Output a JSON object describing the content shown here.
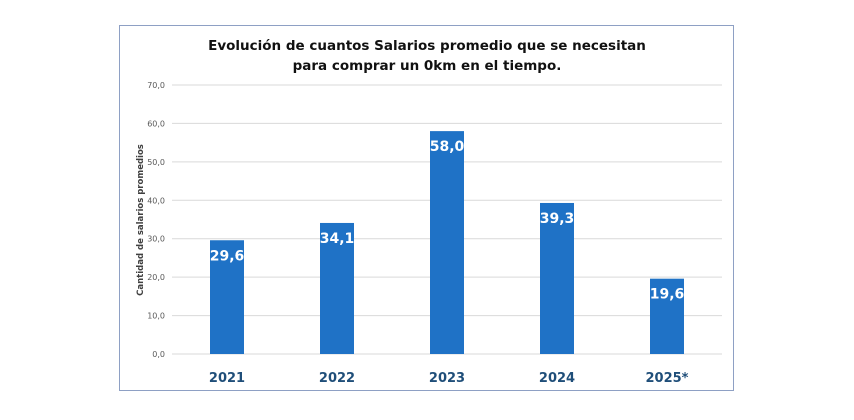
{
  "chart_data": {
    "type": "bar",
    "title": [
      "Evolución de cuantos Salarios promedio que se necesitan",
      "para comprar un 0km en el tiempo."
    ],
    "xlabel": "",
    "ylabel": "Cantidad de salarios promedios",
    "categories": [
      "2021",
      "2022",
      "2023",
      "2024",
      "2025*"
    ],
    "values": [
      29.6,
      34.1,
      58.0,
      39.3,
      19.6
    ],
    "data_labels": [
      "29,6",
      "34,1",
      "58,0",
      "39,3",
      "19,6"
    ],
    "ylim": [
      0,
      70
    ],
    "yticks": [
      0,
      10,
      20,
      30,
      40,
      50,
      60,
      70
    ],
    "ytick_labels": [
      "0,0",
      "10,0",
      "20,0",
      "30,0",
      "40,0",
      "50,0",
      "60,0",
      "70,0"
    ],
    "grid": true,
    "legend": "none",
    "bar_color": "#1f72c6",
    "category_label_color": "#1f4e79"
  }
}
